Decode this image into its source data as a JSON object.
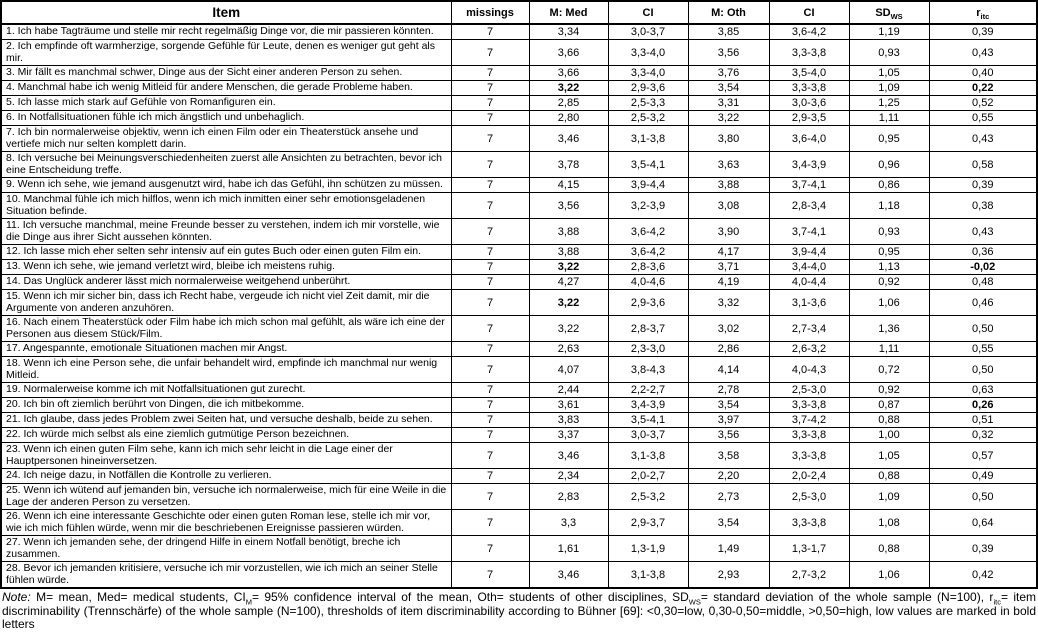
{
  "table": {
    "headers": [
      {
        "key": "item",
        "label": "Item"
      },
      {
        "key": "missings",
        "label": "missings"
      },
      {
        "key": "m-med",
        "label": "M: Med"
      },
      {
        "key": "ci-med",
        "label": "CI"
      },
      {
        "key": "m-oth",
        "label": "M: Oth"
      },
      {
        "key": "ci-oth",
        "label": "CI"
      },
      {
        "key": "sd-ws",
        "label": "SD",
        "sub": "WS"
      },
      {
        "key": "r-itc",
        "label": "r",
        "sub": "itc"
      }
    ],
    "rows": [
      {
        "item": "1. Ich habe Tagträume und stelle mir recht regelmäßig Dinge vor, die mir passieren könnten.",
        "missings": "7",
        "m_med": "3,34",
        "ci_med": "3,0-3,7",
        "m_oth": "3,85",
        "ci_oth": "3,6-4,2",
        "sd_ws": "1,19",
        "r_itc": "0,39"
      },
      {
        "item": "2. Ich empfinde oft warmherzige, sorgende Gefühle für Leute, denen es weniger gut geht als mir.",
        "missings": "7",
        "m_med": "3,66",
        "ci_med": "3,3-4,0",
        "m_oth": "3,56",
        "ci_oth": "3,3-3,8",
        "sd_ws": "0,93",
        "r_itc": "0,43"
      },
      {
        "item": "3. Mir fällt es manchmal schwer, Dinge aus der Sicht einer anderen Person zu sehen.",
        "missings": "7",
        "m_med": "3,66",
        "ci_med": "3,3-4,0",
        "m_oth": "3,76",
        "ci_oth": "3,5-4,0",
        "sd_ws": "1,05",
        "r_itc": "0,40"
      },
      {
        "item": "4. Manchmal habe ich wenig Mitleid für andere Menschen, die gerade Probleme haben.",
        "missings": "7",
        "m_med": "3,22",
        "ci_med": "2,9-3,6",
        "m_oth": "3,54",
        "ci_oth": "3,3-3,8",
        "sd_ws": "1,09",
        "r_itc": "0,22",
        "bold": [
          "m_med",
          "r_itc"
        ]
      },
      {
        "item": "5. Ich lasse mich stark auf Gefühle von Romanfiguren ein.",
        "missings": "7",
        "m_med": "2,85",
        "ci_med": "2,5-3,3",
        "m_oth": "3,31",
        "ci_oth": "3,0-3,6",
        "sd_ws": "1,25",
        "r_itc": "0,52"
      },
      {
        "item": "6. In Notfallsituationen fühle ich mich ängstlich und unbehaglich.",
        "missings": "7",
        "m_med": "2,80",
        "ci_med": "2,5-3,2",
        "m_oth": "3,22",
        "ci_oth": "2,9-3,5",
        "sd_ws": "1,11",
        "r_itc": "0,55"
      },
      {
        "item": "7. Ich bin normalerweise objektiv, wenn ich einen Film oder ein Theaterstück ansehe und vertiefe mich nur selten komplett darin.",
        "missings": "7",
        "m_med": "3,46",
        "ci_med": "3,1-3,8",
        "m_oth": "3,80",
        "ci_oth": "3,6-4,0",
        "sd_ws": "0,95",
        "r_itc": "0,43"
      },
      {
        "item": "8. Ich versuche bei Meinungsverschiedenheiten zuerst alle Ansichten zu betrachten, bevor ich eine Entscheidung treffe.",
        "missings": "7",
        "m_med": "3,78",
        "ci_med": "3,5-4,1",
        "m_oth": "3,63",
        "ci_oth": "3,4-3,9",
        "sd_ws": "0,96",
        "r_itc": "0,58"
      },
      {
        "item": "9. Wenn ich sehe, wie jemand ausgenutzt wird, habe ich das Gefühl, ihn schützen zu müssen.",
        "missings": "7",
        "m_med": "4,15",
        "ci_med": "3,9-4,4",
        "m_oth": "3,88",
        "ci_oth": "3,7-4,1",
        "sd_ws": "0,86",
        "r_itc": "0,39"
      },
      {
        "item": "10. Manchmal fühle ich mich hilflos, wenn ich mich inmitten einer sehr emotionsgeladenen Situation befinde.",
        "missings": "7",
        "m_med": "3,56",
        "ci_med": "3,2-3,9",
        "m_oth": "3,08",
        "ci_oth": "2,8-3,4",
        "sd_ws": "1,18",
        "r_itc": "0,38"
      },
      {
        "item": "11. Ich versuche manchmal, meine Freunde besser zu verstehen, indem ich mir vorstelle, wie die Dinge aus ihrer Sicht aussehen könnten.",
        "missings": "7",
        "m_med": "3,88",
        "ci_med": "3,6-4,2",
        "m_oth": "3,90",
        "ci_oth": "3,7-4,1",
        "sd_ws": "0,93",
        "r_itc": "0,43"
      },
      {
        "item": "12. Ich lasse mich eher selten sehr intensiv auf ein gutes Buch oder einen guten Film ein.",
        "missings": "7",
        "m_med": "3,88",
        "ci_med": "3,6-4,2",
        "m_oth": "4,17",
        "ci_oth": "3,9-4,4",
        "sd_ws": "0,95",
        "r_itc": "0,36"
      },
      {
        "item": "13. Wenn ich sehe, wie jemand verletzt wird, bleibe ich meistens ruhig.",
        "missings": "7",
        "m_med": "3,22",
        "ci_med": "2,8-3,6",
        "m_oth": "3,71",
        "ci_oth": "3,4-4,0",
        "sd_ws": "1,13",
        "r_itc": "-0,02",
        "bold": [
          "m_med",
          "r_itc"
        ]
      },
      {
        "item": "14. Das Unglück anderer lässt mich normalerweise weitgehend unberührt.",
        "missings": "7",
        "m_med": "4,27",
        "ci_med": "4,0-4,6",
        "m_oth": "4,19",
        "ci_oth": "4,0-4,4",
        "sd_ws": "0,92",
        "r_itc": "0,48"
      },
      {
        "item": "15. Wenn ich mir sicher bin, dass ich Recht habe, vergeude ich nicht viel Zeit damit, mir die Argumente von anderen anzuhören.",
        "missings": "7",
        "m_med": "3,22",
        "ci_med": "2,9-3,6",
        "m_oth": "3,32",
        "ci_oth": "3,1-3,6",
        "sd_ws": "1,06",
        "r_itc": "0,46",
        "bold": [
          "m_med"
        ]
      },
      {
        "item": "16. Nach einem Theaterstück oder Film habe ich mich schon mal gefühlt, als wäre ich eine der Personen aus diesem Stück/Film.",
        "missings": "7",
        "m_med": "3,22",
        "ci_med": "2,8-3,7",
        "m_oth": "3,02",
        "ci_oth": "2,7-3,4",
        "sd_ws": "1,36",
        "r_itc": "0,50"
      },
      {
        "item": "17. Angespannte, emotionale Situationen machen mir Angst.",
        "missings": "7",
        "m_med": "2,63",
        "ci_med": "2,3-3,0",
        "m_oth": "2,86",
        "ci_oth": "2,6-3,2",
        "sd_ws": "1,11",
        "r_itc": "0,55"
      },
      {
        "item": "18. Wenn ich eine Person sehe, die unfair behandelt wird, empfinde ich manchmal nur wenig Mitleid.",
        "missings": "7",
        "m_med": "4,07",
        "ci_med": "3,8-4,3",
        "m_oth": "4,14",
        "ci_oth": "4,0-4,3",
        "sd_ws": "0,72",
        "r_itc": "0,50"
      },
      {
        "item": "19. Normalerweise komme ich mit Notfallsituationen gut zurecht.",
        "missings": "7",
        "m_med": "2,44",
        "ci_med": "2,2-2,7",
        "m_oth": "2,78",
        "ci_oth": "2,5-3,0",
        "sd_ws": "0,92",
        "r_itc": "0,63"
      },
      {
        "item": "20. Ich bin oft ziemlich berührt von Dingen, die ich mitbekomme.",
        "missings": "7",
        "m_med": "3,61",
        "ci_med": "3,4-3,9",
        "m_oth": "3,54",
        "ci_oth": "3,3-3,8",
        "sd_ws": "0,87",
        "r_itc": "0,26",
        "bold": [
          "r_itc"
        ]
      },
      {
        "item": "21. Ich glaube, dass jedes Problem zwei Seiten hat, und versuche deshalb, beide zu sehen.",
        "missings": "7",
        "m_med": "3,83",
        "ci_med": "3,5-4,1",
        "m_oth": "3,97",
        "ci_oth": "3,7-4,2",
        "sd_ws": "0,88",
        "r_itc": "0,51"
      },
      {
        "item": "22. Ich würde mich selbst als eine ziemlich gutmütige Person bezeichnen.",
        "missings": "7",
        "m_med": "3,37",
        "ci_med": "3,0-3,7",
        "m_oth": "3,56",
        "ci_oth": "3,3-3,8",
        "sd_ws": "1,00",
        "r_itc": "0,32"
      },
      {
        "item": "23. Wenn ich einen guten Film sehe, kann ich mich sehr leicht in die Lage einer der Hauptpersonen hineinversetzen.",
        "missings": "7",
        "m_med": "3,46",
        "ci_med": "3,1-3,8",
        "m_oth": "3,58",
        "ci_oth": "3,3-3,8",
        "sd_ws": "1,05",
        "r_itc": "0,57"
      },
      {
        "item": "24. Ich neige dazu, in Notfällen die Kontrolle zu verlieren.",
        "missings": "7",
        "m_med": "2,34",
        "ci_med": "2,0-2,7",
        "m_oth": "2,20",
        "ci_oth": "2,0-2,4",
        "sd_ws": "0,88",
        "r_itc": "0,49"
      },
      {
        "item": "25. Wenn ich wütend auf jemanden bin, versuche ich normalerweise, mich für eine Weile in die Lage der anderen Person zu versetzen.",
        "missings": "7",
        "m_med": "2,83",
        "ci_med": "2,5-3,2",
        "m_oth": "2,73",
        "ci_oth": "2,5-3,0",
        "sd_ws": "1,09",
        "r_itc": "0,50"
      },
      {
        "item": "26. Wenn ich eine interessante Geschichte oder einen guten Roman lese, stelle ich mir vor, wie ich mich fühlen würde, wenn mir die beschriebenen Ereignisse passieren würden.",
        "missings": "7",
        "m_med": "3,3",
        "ci_med": "2,9-3,7",
        "m_oth": "3,54",
        "ci_oth": "3,3-3,8",
        "sd_ws": "1,08",
        "r_itc": "0,64"
      },
      {
        "item": "27. Wenn ich jemanden sehe, der dringend Hilfe in einem Notfall benötigt, breche ich zusammen.",
        "missings": "7",
        "m_med": "1,61",
        "ci_med": "1,3-1,9",
        "m_oth": "1,49",
        "ci_oth": "1,3-1,7",
        "sd_ws": "0,88",
        "r_itc": "0,39"
      },
      {
        "item": "28. Bevor ich jemanden kritisiere, versuche ich mir vorzustellen, wie ich mich an seiner Stelle fühlen würde.",
        "missings": "7",
        "m_med": "3,46",
        "ci_med": "3,1-3,8",
        "m_oth": "2,93",
        "ci_oth": "2,7-3,2",
        "sd_ws": "1,06",
        "r_itc": "0,42"
      }
    ]
  },
  "note": {
    "prefix": "Note:",
    "segments": [
      {
        "text": " M= mean, Med= medical students, CI"
      },
      {
        "text": "M",
        "sub": true
      },
      {
        "text": "= 95% confidence interval of the mean, Oth= students of other disciplines, SD"
      },
      {
        "text": "WS",
        "sub": true
      },
      {
        "text": "= standard deviation of the whole sample (N=100), r"
      },
      {
        "text": "itc",
        "sub": true
      },
      {
        "text": "= item discriminability (Trennschärfe) of the whole sample (N=100), thresholds of item discriminability according to Bühner [69]: <0,30=low, 0,30-0,50=middle, >0,50=high, low values are marked in bold letters"
      }
    ]
  }
}
